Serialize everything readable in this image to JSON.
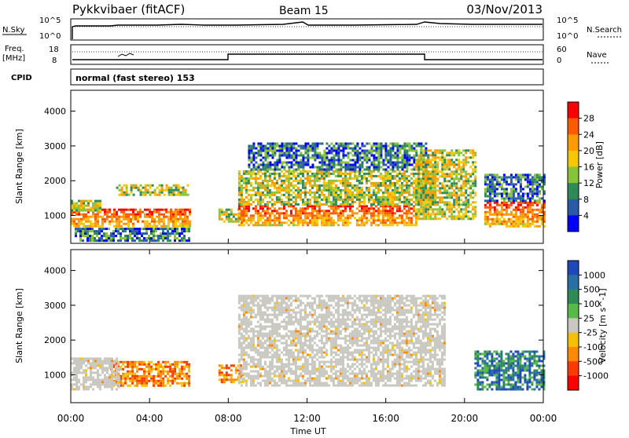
{
  "header": {
    "station": "Pykkvibaer (fitACF)",
    "beam": "Beam 15",
    "date": "03/Nov/2013"
  },
  "summary": {
    "nsky_label": "N.Sky",
    "nsearch_label": "N.Search",
    "nsky_ticks": [
      "10^5",
      "10^0"
    ],
    "nsearch_ticks": [
      "10^5",
      "10^0"
    ],
    "freq_label_1": "Freq.",
    "freq_label_2": "[MHz]",
    "freq_ticks": [
      "18",
      "8"
    ],
    "nave_label": "Nave",
    "nave_ticks": [
      "60",
      "0"
    ],
    "cpid_label": "CPID",
    "cpid_text": "normal (fast stereo) 153"
  },
  "chart_data": [
    {
      "type": "heatmap",
      "panel": "power",
      "ylabel": "Slant Range [km]",
      "yticks": [
        1000,
        2000,
        3000,
        4000
      ],
      "ylim": [
        200,
        4600
      ],
      "xlim": [
        0,
        24
      ],
      "colorbar": {
        "label": "Power [dB]",
        "ticks": [
          "28",
          "24",
          "20",
          "16",
          "12",
          "8",
          "4"
        ],
        "colors": [
          "#ff0000",
          "#ff5a00",
          "#ff9a00",
          "#f5c800",
          "#88c43a",
          "#2e8b57",
          "#2a5aa8",
          "#0000ff"
        ]
      },
      "regions": [
        {
          "t0": 0.0,
          "t1": 6.0,
          "r0": 700,
          "r1": 1200,
          "level": "high"
        },
        {
          "t0": 0.0,
          "t1": 1.5,
          "r0": 1150,
          "r1": 1450,
          "level": "mid"
        },
        {
          "t0": 2.3,
          "t1": 5.9,
          "r0": 1600,
          "r1": 1900,
          "level": "mid"
        },
        {
          "t0": 0.2,
          "t1": 6.0,
          "r0": 300,
          "r1": 650,
          "level": "low"
        },
        {
          "t0": 7.5,
          "t1": 8.8,
          "r0": 800,
          "r1": 1200,
          "level": "mid"
        },
        {
          "t0": 8.5,
          "t1": 17.5,
          "r0": 700,
          "r1": 1300,
          "level": "high"
        },
        {
          "t0": 8.5,
          "t1": 18.5,
          "r0": 1300,
          "r1": 2300,
          "level": "mid"
        },
        {
          "t0": 9.0,
          "t1": 18.0,
          "r0": 2300,
          "r1": 3100,
          "level": "low"
        },
        {
          "t0": 17.5,
          "t1": 20.5,
          "r0": 900,
          "r1": 2900,
          "level": "mid"
        },
        {
          "t0": 21.0,
          "t1": 24.0,
          "r0": 700,
          "r1": 1400,
          "level": "high"
        },
        {
          "t0": 21.0,
          "t1": 24.0,
          "r0": 1400,
          "r1": 2200,
          "level": "low"
        }
      ]
    },
    {
      "type": "heatmap",
      "panel": "velocity",
      "ylabel": "Slant Range [km]",
      "xlabel": "Time UT",
      "yticks": [
        1000,
        2000,
        3000,
        4000
      ],
      "xticks": [
        "00:00",
        "04:00",
        "08:00",
        "12:00",
        "16:00",
        "20:00",
        "00:00"
      ],
      "ylim": [
        200,
        4600
      ],
      "xlim": [
        0,
        24
      ],
      "colorbar": {
        "label": "Velocity [m s^-1]",
        "ticks": [
          "1000",
          "500",
          "100",
          "25",
          "-25",
          "-100",
          "-500",
          "-1000"
        ],
        "colors": [
          "#1f48b8",
          "#2a6fa3",
          "#2e8b57",
          "#58b848",
          "#c8c8c0",
          "#f5c000",
          "#ff8a00",
          "#ff3a00",
          "#ff0000"
        ]
      },
      "regions": [
        {
          "t0": 2.0,
          "t1": 6.0,
          "r0": 700,
          "r1": 1400,
          "vel": "toward"
        },
        {
          "t0": 0.0,
          "t1": 2.5,
          "r0": 600,
          "r1": 1500,
          "vel": "ground"
        },
        {
          "t0": 7.5,
          "t1": 8.8,
          "r0": 800,
          "r1": 1300,
          "vel": "toward"
        },
        {
          "t0": 8.5,
          "t1": 19.0,
          "r0": 700,
          "r1": 3300,
          "vel": "ground"
        },
        {
          "t0": 20.5,
          "t1": 24.0,
          "r0": 600,
          "r1": 1700,
          "vel": "away"
        }
      ]
    }
  ],
  "colors": {
    "frame": "#000000",
    "ground_scatter": "#c8c8c0"
  }
}
